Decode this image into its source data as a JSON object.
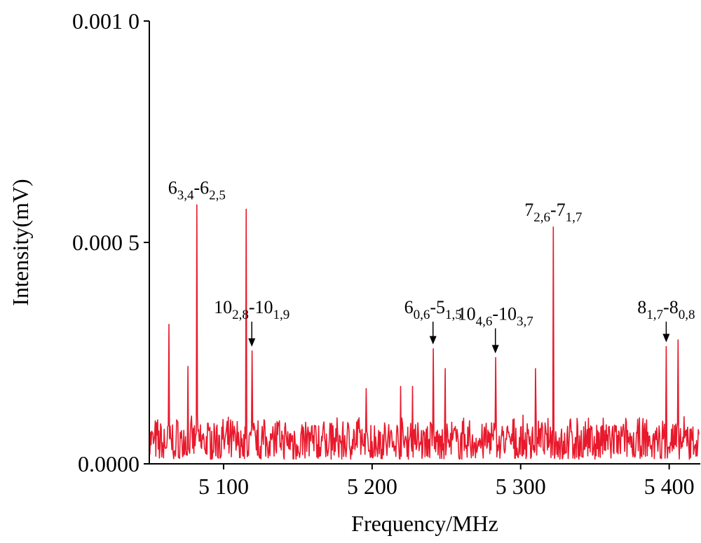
{
  "chart_data": {
    "type": "line",
    "xlabel": "Frequency/MHz",
    "ylabel": "Intensity(mV)",
    "xlim": [
      5050,
      5420
    ],
    "ylim": [
      0,
      0.001
    ],
    "xticks": [
      5100,
      5200,
      5300,
      5400
    ],
    "xtick_labels": [
      "5 100",
      "5 200",
      "5 300",
      "5 400"
    ],
    "yticks": [
      0,
      0.0005,
      0.001
    ],
    "ytick_labels": [
      "0.0000",
      "0.000 5",
      "0.001 0"
    ],
    "grid": false,
    "series_color": "#e8192c",
    "peaks": [
      {
        "x": 5063,
        "y": 0.000315
      },
      {
        "x": 5076,
        "y": 0.00022
      },
      {
        "x": 5082,
        "y": 0.000585
      },
      {
        "x": 5115,
        "y": 0.000575
      },
      {
        "x": 5119,
        "y": 0.000255
      },
      {
        "x": 5241,
        "y": 0.00026
      },
      {
        "x": 5249,
        "y": 0.000215
      },
      {
        "x": 5283,
        "y": 0.00024
      },
      {
        "x": 5310,
        "y": 0.000215
      },
      {
        "x": 5322,
        "y": 0.000535
      },
      {
        "x": 5398,
        "y": 0.000265
      },
      {
        "x": 5406,
        "y": 0.00028
      },
      {
        "x": 5196,
        "y": 0.00017
      },
      {
        "x": 5219,
        "y": 0.000175
      },
      {
        "x": 5227,
        "y": 0.000175
      }
    ],
    "noise_level": 5e-05,
    "noise_spread": 8e-05,
    "annotations": [
      {
        "main1": "6",
        "sub1": "3,4",
        "sep": "-",
        "main2": "6",
        "sub2": "2,5",
        "x": 5082,
        "label_y": 0.00061,
        "arrow": false
      },
      {
        "main1": "10",
        "sub1": "2,8",
        "sep": "-",
        "main2": "10",
        "sub2": "1,9",
        "x": 5119,
        "label_y": 0.00034,
        "arrow": true
      },
      {
        "main1": "6",
        "sub1": "0,6",
        "sep": "-",
        "main2": "5",
        "sub2": "1,5",
        "x": 5241,
        "label_y": 0.00034,
        "arrow": true
      },
      {
        "main1": "10",
        "sub1": "4,6",
        "sep": "-",
        "main2": "10",
        "sub2": "3,7",
        "x": 5283,
        "label_y": 0.000325,
        "arrow": true
      },
      {
        "main1": "7",
        "sub1": "2,6",
        "sep": "-",
        "main2": "7",
        "sub2": "1,7",
        "x": 5322,
        "label_y": 0.00056,
        "arrow": false
      },
      {
        "main1": "8",
        "sub1": "1,7",
        "sep": "-",
        "main2": "8",
        "sub2": "0,8",
        "x": 5398,
        "label_y": 0.00034,
        "arrow": true
      }
    ]
  }
}
